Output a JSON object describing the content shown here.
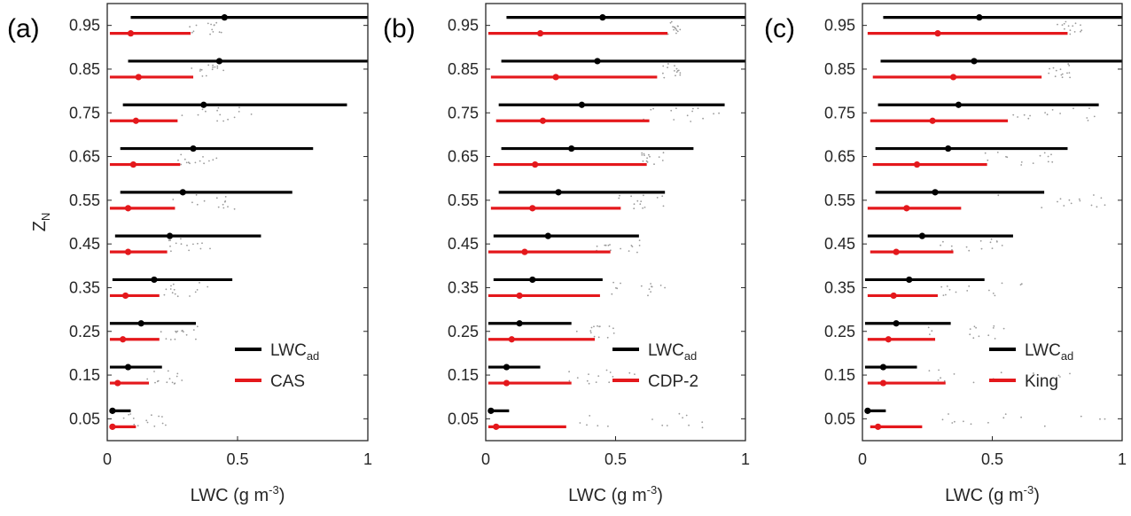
{
  "colors": {
    "ad": "#000000",
    "instrument": "#e4181c",
    "scatter": "#9a9a9a",
    "axis": "#262626"
  },
  "chart_data": [
    {
      "type": "scatter",
      "panel_label": "(a)",
      "xlabel": "LWC (g m",
      "xlabel_sup": "-3",
      "xlabel_end": ")",
      "ylabel": "Z",
      "ylabel_sub": "N",
      "xlim": [
        0,
        1
      ],
      "x_ticks": [
        "0",
        "0.5",
        "1"
      ],
      "x_tick_values": [
        0,
        0.5,
        1
      ],
      "y_ticks": [
        "0.95",
        "0.85",
        "0.75",
        "0.65",
        "0.55",
        "0.45",
        "0.35",
        "0.25",
        "0.15",
        "0.05"
      ],
      "y_tick_values": [
        0.95,
        0.85,
        0.75,
        0.65,
        0.55,
        0.45,
        0.35,
        0.25,
        0.15,
        0.05
      ],
      "legend_position": "lower-right",
      "series": [
        {
          "name": "LWC",
          "name_sub": "ad",
          "mean": [
            0.45,
            0.43,
            0.37,
            0.33,
            0.29,
            0.24,
            0.18,
            0.13,
            0.08,
            0.02
          ],
          "lo": [
            0.09,
            0.08,
            0.06,
            0.05,
            0.05,
            0.03,
            0.02,
            0.01,
            0.01,
            0.01
          ],
          "hi": [
            1.0,
            1.0,
            0.92,
            0.79,
            0.71,
            0.59,
            0.48,
            0.34,
            0.21,
            0.09
          ]
        },
        {
          "name": "CAS",
          "mean": [
            0.09,
            0.12,
            0.11,
            0.1,
            0.08,
            0.08,
            0.07,
            0.06,
            0.04,
            0.02
          ],
          "lo": [
            0.01,
            0.01,
            0.01,
            0.01,
            0.01,
            0.01,
            0.01,
            0.01,
            0.01,
            0.01
          ],
          "hi": [
            0.32,
            0.33,
            0.27,
            0.28,
            0.26,
            0.23,
            0.2,
            0.2,
            0.16,
            0.11
          ]
        }
      ],
      "scatter_ranges": [
        [
          0.3,
          0.45
        ],
        [
          0.3,
          0.45
        ],
        [
          0.28,
          0.62
        ],
        [
          0.27,
          0.42
        ],
        [
          0.25,
          0.55
        ],
        [
          0.22,
          0.4
        ],
        [
          0.2,
          0.4
        ],
        [
          0.2,
          0.35
        ],
        [
          0.15,
          0.3
        ],
        [
          0.05,
          0.26
        ]
      ]
    },
    {
      "type": "scatter",
      "panel_label": "(b)",
      "xlabel": "LWC (g m",
      "xlabel_sup": "-3",
      "xlabel_end": ")",
      "xlim": [
        0,
        1
      ],
      "x_ticks": [
        "0",
        "0.5",
        "1"
      ],
      "x_tick_values": [
        0,
        0.5,
        1
      ],
      "y_ticks": [
        "0.95",
        "0.85",
        "0.75",
        "0.65",
        "0.55",
        "0.45",
        "0.35",
        "0.25",
        "0.15",
        "0.05"
      ],
      "y_tick_values": [
        0.95,
        0.85,
        0.75,
        0.65,
        0.55,
        0.45,
        0.35,
        0.25,
        0.15,
        0.05
      ],
      "legend_position": "lower-right",
      "series": [
        {
          "name": "LWC",
          "name_sub": "ad",
          "mean": [
            0.45,
            0.43,
            0.37,
            0.33,
            0.28,
            0.24,
            0.18,
            0.13,
            0.08,
            0.02
          ],
          "lo": [
            0.08,
            0.06,
            0.05,
            0.06,
            0.05,
            0.03,
            0.03,
            0.01,
            0.01,
            0.01
          ],
          "hi": [
            1.0,
            1.0,
            0.92,
            0.8,
            0.69,
            0.59,
            0.45,
            0.33,
            0.21,
            0.09
          ]
        },
        {
          "name": "CDP-2",
          "mean": [
            0.21,
            0.27,
            0.22,
            0.19,
            0.18,
            0.15,
            0.13,
            0.1,
            0.08,
            0.04
          ],
          "lo": [
            0.01,
            0.02,
            0.04,
            0.03,
            0.02,
            0.01,
            0.01,
            0.01,
            0.01,
            0.01
          ],
          "hi": [
            0.7,
            0.66,
            0.63,
            0.62,
            0.52,
            0.48,
            0.44,
            0.42,
            0.33,
            0.31
          ]
        }
      ],
      "scatter_ranges": [
        [
          0.7,
          0.75
        ],
        [
          0.68,
          0.75
        ],
        [
          0.6,
          0.9
        ],
        [
          0.6,
          0.7
        ],
        [
          0.5,
          0.7
        ],
        [
          0.4,
          0.6
        ],
        [
          0.45,
          0.7
        ],
        [
          0.35,
          0.5
        ],
        [
          0.3,
          0.6
        ],
        [
          0.3,
          0.9
        ]
      ]
    },
    {
      "type": "scatter",
      "panel_label": "(c)",
      "xlabel": "LWC (g m",
      "xlabel_sup": "-3",
      "xlabel_end": ")",
      "xlim": [
        0,
        1
      ],
      "x_ticks": [
        "0",
        "0.5",
        "1"
      ],
      "x_tick_values": [
        0,
        0.5,
        1
      ],
      "y_ticks": [
        "0.95",
        "0.85",
        "0.75",
        "0.65",
        "0.55",
        "0.45",
        "0.35",
        "0.25",
        "0.15",
        "0.05"
      ],
      "y_tick_values": [
        0.95,
        0.85,
        0.75,
        0.65,
        0.55,
        0.45,
        0.35,
        0.25,
        0.15,
        0.05
      ],
      "legend_position": "lower-right",
      "series": [
        {
          "name": "LWC",
          "name_sub": "ad",
          "mean": [
            0.45,
            0.43,
            0.37,
            0.33,
            0.28,
            0.23,
            0.18,
            0.13,
            0.08,
            0.02
          ],
          "lo": [
            0.08,
            0.07,
            0.06,
            0.05,
            0.05,
            0.02,
            0.01,
            0.01,
            0.01,
            0.01
          ],
          "hi": [
            1.0,
            1.0,
            0.91,
            0.79,
            0.7,
            0.58,
            0.47,
            0.34,
            0.21,
            0.09
          ]
        },
        {
          "name": "King",
          "mean": [
            0.29,
            0.35,
            0.27,
            0.21,
            0.17,
            0.13,
            0.12,
            0.1,
            0.08,
            0.06
          ],
          "lo": [
            0.02,
            0.04,
            0.03,
            0.04,
            0.02,
            0.03,
            0.02,
            0.02,
            0.02,
            0.03
          ],
          "hi": [
            0.79,
            0.69,
            0.56,
            0.48,
            0.38,
            0.35,
            0.29,
            0.28,
            0.32,
            0.23
          ]
        }
      ],
      "scatter_ranges": [
        [
          0.75,
          0.85
        ],
        [
          0.7,
          0.8
        ],
        [
          0.55,
          0.9
        ],
        [
          0.45,
          0.75
        ],
        [
          0.4,
          0.95
        ],
        [
          0.3,
          0.7
        ],
        [
          0.3,
          0.65
        ],
        [
          0.25,
          0.6
        ],
        [
          0.25,
          0.85
        ],
        [
          0.2,
          0.95
        ]
      ]
    }
  ]
}
